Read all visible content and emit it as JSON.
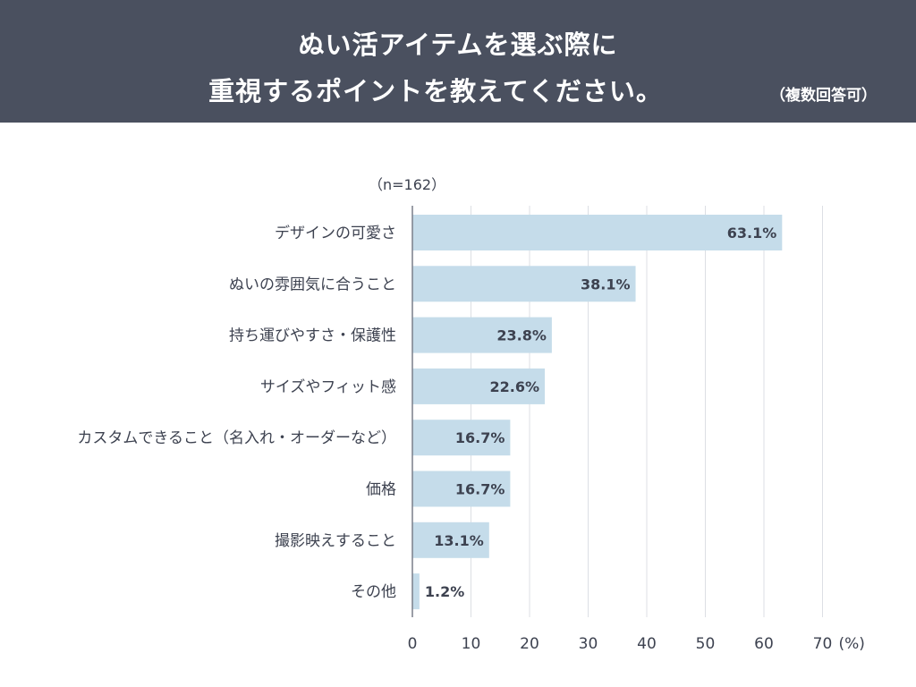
{
  "title_lines": [
    "ぬい活アイテムを選ぶ際に",
    "重視するポイントを教えてください。"
  ],
  "note": "（複数回答可）",
  "sample": "（n=162）",
  "unit": "(%)",
  "colors": {
    "banner": "#4a505f",
    "bar": "#c5dcea",
    "grid": "#dcdfe4",
    "axis": "#7a7f8a",
    "text": "#3d4250"
  },
  "chart_data": {
    "type": "bar",
    "orientation": "horizontal",
    "categories": [
      "デザインの可愛さ",
      "ぬいの雰囲気に合うこと",
      "持ち運びやすさ・保護性",
      "サイズやフィット感",
      "カスタムできること（名入れ・オーダーなど）",
      "価格",
      "撮影映えすること",
      "その他"
    ],
    "values": [
      63.1,
      38.1,
      23.8,
      22.6,
      16.7,
      16.7,
      13.1,
      1.2
    ],
    "value_labels": [
      "63.1%",
      "38.1%",
      "23.8%",
      "22.6%",
      "16.7%",
      "16.7%",
      "13.1%",
      "1.2%"
    ],
    "xlim": [
      0,
      70
    ],
    "ticks": [
      0,
      10,
      20,
      30,
      40,
      50,
      60,
      70
    ],
    "grid": true
  }
}
